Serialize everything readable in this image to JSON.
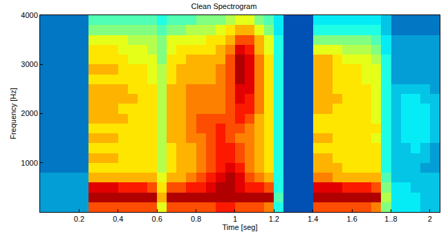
{
  "chart_data": {
    "type": "heatmap",
    "title": "Clean Spectrogram",
    "xlabel": "Time [seg]",
    "ylabel": "Frequency [Hz]",
    "x": [
      0.025,
      0.075,
      0.125,
      0.175,
      0.225,
      0.275,
      0.325,
      0.375,
      0.425,
      0.475,
      0.525,
      0.575,
      0.625,
      0.675,
      0.725,
      0.775,
      0.825,
      0.875,
      0.925,
      0.975,
      1.025,
      1.075,
      1.125,
      1.175,
      1.225,
      1.275,
      1.325,
      1.375,
      1.425,
      1.475,
      1.525,
      1.575,
      1.625,
      1.675,
      1.725,
      1.775,
      1.825,
      1.875,
      1.925,
      1.975,
      2.025
    ],
    "y": [
      100,
      300,
      500,
      700,
      900,
      1100,
      1300,
      1500,
      1700,
      1900,
      2100,
      2300,
      2500,
      2700,
      2900,
      3100,
      3300,
      3500,
      3700,
      3900
    ],
    "z": [
      [
        2.5,
        2.5,
        2.5,
        2.5,
        2.5,
        8,
        8,
        8,
        8,
        8,
        8,
        8,
        6,
        8,
        8,
        8,
        8,
        8,
        8.5,
        8.5,
        8,
        8,
        8,
        7.5,
        4,
        1.5,
        1.5,
        1.5,
        8,
        8,
        8,
        8,
        8,
        8,
        7.5,
        5,
        3.5,
        3.5,
        3.5,
        3,
        3
      ],
      [
        2.5,
        2.5,
        2.5,
        2.5,
        2.5,
        9.5,
        9.5,
        9.5,
        9.5,
        9.5,
        9.5,
        9.5,
        7,
        9.5,
        9.5,
        9.5,
        9.5,
        9.5,
        9.5,
        9.5,
        9.5,
        9.5,
        9.5,
        9.5,
        4.5,
        1.5,
        1.5,
        1.5,
        9.5,
        9.5,
        9.5,
        9.5,
        9.5,
        9.5,
        9.5,
        5.5,
        3.5,
        3.5,
        3.5,
        3,
        3
      ],
      [
        2.5,
        2.5,
        2.5,
        2.5,
        2.5,
        9,
        9,
        9,
        8.5,
        8.5,
        8.5,
        8,
        6.5,
        8,
        8,
        8.5,
        8.5,
        9,
        9.5,
        9.5,
        9,
        8.5,
        8.5,
        8,
        4,
        1.5,
        1.5,
        1.5,
        9,
        9,
        9,
        8.5,
        8.5,
        8.5,
        8,
        5,
        3.5,
        3.5,
        3,
        3,
        3
      ],
      [
        2.5,
        2.5,
        2.5,
        2.5,
        2.5,
        7,
        7,
        7,
        7,
        7,
        7,
        7,
        6,
        7,
        7,
        7.5,
        8,
        8.5,
        9,
        9.5,
        9,
        8,
        7.5,
        7,
        4,
        1.5,
        1.5,
        1.5,
        7.5,
        7.5,
        7,
        7,
        7,
        7,
        7,
        4.5,
        3,
        3,
        3,
        3,
        3
      ],
      [
        2,
        2,
        2,
        2,
        2,
        6.5,
        6.5,
        6.5,
        6.5,
        6.5,
        6.5,
        6.5,
        5.5,
        6.5,
        7,
        7,
        7.5,
        8,
        8.5,
        9,
        8.5,
        7.5,
        7,
        6.5,
        4,
        1.5,
        1.5,
        1.5,
        7,
        7,
        7,
        6.5,
        6.5,
        6.5,
        6.5,
        4,
        3,
        3,
        3,
        2.5,
        2.5
      ],
      [
        2,
        2,
        2,
        2,
        2,
        7,
        7,
        7,
        6.5,
        6.5,
        6.5,
        6.5,
        5.5,
        6.5,
        7,
        7,
        7.5,
        8,
        8.5,
        8.5,
        8,
        7.5,
        7,
        6.5,
        4,
        1.5,
        1.5,
        1.5,
        7,
        7,
        6.5,
        6.5,
        6.5,
        6.5,
        6.5,
        4,
        3,
        3,
        3,
        3,
        2.5
      ],
      [
        2,
        2,
        2,
        2,
        2,
        6.5,
        6.5,
        6.5,
        6.5,
        6.5,
        6.5,
        6.5,
        5.5,
        6.5,
        7,
        7,
        7.5,
        8,
        8.5,
        8.5,
        8,
        7.5,
        7,
        6.5,
        4,
        1.5,
        1.5,
        1.5,
        6.5,
        6.5,
        6.5,
        6.5,
        6.5,
        6.5,
        6.5,
        4,
        3,
        3,
        3.5,
        3,
        2.5
      ],
      [
        2,
        2,
        2,
        2,
        2,
        7,
        7,
        7,
        6.5,
        6.5,
        6.5,
        6.5,
        5.5,
        7,
        7,
        7.5,
        7.5,
        8,
        8.5,
        8,
        7.5,
        7.5,
        7,
        6.5,
        4,
        1.5,
        1.5,
        1.5,
        7,
        7,
        6.5,
        6.5,
        6.5,
        6.5,
        6,
        4,
        3,
        3.5,
        3.5,
        3.5,
        3
      ],
      [
        2,
        2,
        2,
        2,
        2,
        6.5,
        6.5,
        6.5,
        6.5,
        6.5,
        6.5,
        6.5,
        5.5,
        7,
        7,
        7.5,
        8,
        8,
        8.5,
        8,
        8,
        7.5,
        7,
        6.5,
        4,
        1.5,
        1.5,
        1.5,
        6.5,
        6.5,
        6.5,
        6.5,
        6.5,
        6.5,
        6.5,
        4,
        3,
        3.5,
        3.5,
        3.5,
        3
      ],
      [
        2,
        2,
        2,
        2,
        2,
        7,
        7,
        7,
        7,
        6.5,
        6.5,
        6.5,
        5.5,
        7,
        7,
        7.5,
        8,
        8,
        8,
        8,
        8.5,
        8,
        7,
        6.5,
        4,
        1.5,
        1.5,
        1.5,
        6.5,
        6.5,
        6.5,
        6.5,
        6.5,
        6.5,
        6,
        4,
        3,
        3.5,
        3.5,
        3.5,
        3
      ],
      [
        2,
        2,
        2,
        2,
        2,
        7,
        7,
        7,
        6.5,
        6.5,
        6.5,
        6.5,
        5.5,
        7,
        7,
        7.5,
        7.5,
        7.5,
        7.5,
        8,
        8.5,
        8.5,
        7.5,
        6.5,
        4,
        1.5,
        1.5,
        1.5,
        7,
        7,
        6.5,
        6.5,
        6.5,
        6.5,
        6,
        4,
        3,
        3.5,
        3.5,
        3.5,
        3
      ],
      [
        2,
        2,
        2,
        2,
        2,
        7,
        7,
        7,
        7,
        7,
        6.5,
        6.5,
        5.5,
        7,
        7,
        7.5,
        7.5,
        7.5,
        7.5,
        8,
        9,
        8.5,
        7.5,
        6.5,
        4,
        1.5,
        1.5,
        1.5,
        7,
        7,
        7,
        6.5,
        6.5,
        6.5,
        6,
        4,
        3,
        3.5,
        3.5,
        3,
        3
      ],
      [
        2,
        2,
        2,
        2,
        2,
        7,
        7,
        7,
        7,
        6.5,
        6.5,
        6.5,
        5.5,
        7,
        7,
        7.5,
        7.5,
        7.5,
        7.5,
        8,
        9,
        9,
        7.5,
        6.5,
        4,
        1.5,
        1.5,
        1.5,
        7,
        7,
        6.5,
        6.5,
        6.5,
        6.5,
        6,
        4,
        3,
        3,
        3,
        3,
        2.5
      ],
      [
        2,
        2,
        2,
        2,
        2,
        6.5,
        6.5,
        6.5,
        6.5,
        6.5,
        6.5,
        6,
        5.5,
        6.5,
        7,
        7,
        7,
        7,
        7.5,
        8,
        9.5,
        9,
        7.5,
        6.5,
        4,
        1.5,
        1.5,
        1.5,
        7,
        7,
        6.5,
        6.5,
        6.5,
        6,
        6,
        4,
        2.5,
        2.5,
        2.5,
        2.5,
        2.5
      ],
      [
        2,
        2,
        2,
        2,
        2,
        7,
        7,
        7,
        6.5,
        6.5,
        6.5,
        6,
        5.5,
        6.5,
        7,
        7,
        7,
        7,
        7.5,
        8,
        9.5,
        9,
        7.5,
        6.5,
        4,
        1.5,
        1.5,
        1.5,
        7,
        7,
        6.5,
        6.5,
        6.5,
        6,
        6,
        4,
        2.5,
        2.5,
        2.5,
        2.5,
        2.5
      ],
      [
        2,
        2,
        2,
        2,
        2,
        6.5,
        6.5,
        6.5,
        6.5,
        6,
        6,
        6,
        5,
        6.5,
        6.5,
        7,
        7,
        7,
        7,
        8,
        9.5,
        9,
        7.5,
        6.5,
        4,
        1.5,
        1.5,
        1.5,
        7,
        7,
        6.5,
        6,
        6,
        6,
        5.5,
        4,
        2.5,
        2.5,
        2.5,
        2.5,
        2.5
      ],
      [
        2,
        2,
        2,
        2,
        2,
        6.5,
        6.5,
        6.5,
        6,
        6,
        6,
        5.5,
        5,
        6,
        6.5,
        6.5,
        6.5,
        6.5,
        7,
        7.5,
        9,
        8.5,
        7,
        6,
        4,
        1.5,
        1.5,
        1.5,
        6,
        6,
        6,
        5.5,
        5.5,
        5.5,
        5,
        3.5,
        2.5,
        2.5,
        2.5,
        2.5,
        2.5
      ],
      [
        2,
        2,
        2,
        2,
        2,
        6,
        6,
        6,
        6,
        5.5,
        5.5,
        5.5,
        5,
        6,
        6,
        6,
        6,
        6.5,
        6.5,
        7,
        8,
        8,
        7,
        6,
        4,
        1.5,
        1.5,
        1.5,
        5,
        5,
        5,
        5,
        5,
        5,
        4.5,
        3.5,
        2.5,
        2.5,
        2.5,
        2.5,
        2.5
      ],
      [
        2,
        2,
        2,
        2,
        2,
        5,
        5,
        5,
        5,
        5,
        5,
        5,
        4.5,
        5,
        5,
        5.5,
        5.5,
        5.5,
        6,
        6.5,
        7,
        7,
        6,
        5,
        3.5,
        1.5,
        1.5,
        1.5,
        4,
        4,
        4,
        4,
        4,
        4,
        4,
        3,
        2,
        2,
        2,
        2,
        2
      ],
      [
        2,
        2,
        2,
        2,
        2,
        4.5,
        4.5,
        4.5,
        4.5,
        4.5,
        4.5,
        4.5,
        4,
        4.5,
        4.5,
        4.5,
        5,
        5,
        5,
        5.5,
        6,
        6,
        5,
        4.5,
        3.5,
        1.5,
        1.5,
        1.5,
        3.5,
        3.5,
        3.5,
        3.5,
        3.5,
        3.5,
        3.5,
        3,
        2,
        2,
        2,
        2,
        2
      ]
    ],
    "zlim": [
      0,
      10
    ],
    "xlim": [
      0,
      2.05
    ],
    "xticks": [
      0.2,
      0.4,
      0.6,
      0.8,
      1,
      1.2,
      1.4,
      1.6,
      {
        "value": 1.8,
        "label": "1..8"
      },
      2
    ],
    "ylim": [
      0,
      4000
    ],
    "yticks": [
      1000,
      2000,
      3000,
      4000
    ]
  }
}
